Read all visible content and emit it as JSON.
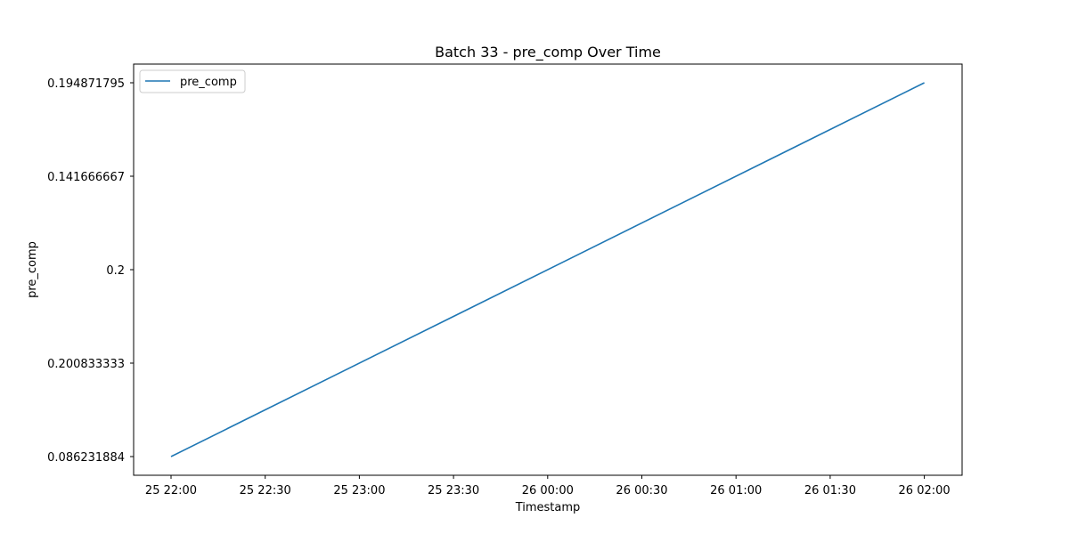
{
  "chart_data": {
    "type": "line",
    "title": "Batch 33 - pre_comp Over Time",
    "xlabel": "Timestamp",
    "ylabel": "pre_comp",
    "x_tick_labels": [
      "25 22:00",
      "25 22:30",
      "25 23:00",
      "25 23:30",
      "26 00:00",
      "26 00:30",
      "26 01:00",
      "26 01:30",
      "26 02:00"
    ],
    "y_categories": [
      "0.086231884",
      "0.200833333",
      "0.2",
      "0.141666667",
      "0.194871795"
    ],
    "series": [
      {
        "name": "pre_comp",
        "color": "#1f77b4",
        "x": [
          "25 22:00",
          "26 02:00"
        ],
        "y": [
          "0.086231884",
          "0.194871795"
        ]
      }
    ],
    "legend": {
      "placement": "top-left"
    },
    "grid": false
  }
}
